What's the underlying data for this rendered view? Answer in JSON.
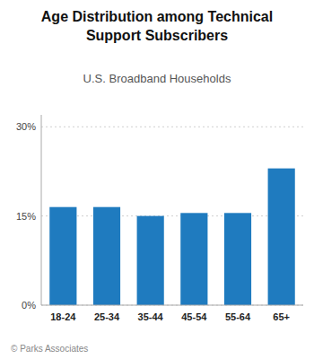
{
  "chart_data": {
    "type": "bar",
    "title": "Age Distribution among Technical\nSupport Subscribers",
    "subtitle": "U.S. Broadband Households",
    "footer": "© Parks Associates",
    "categories": [
      "18-24",
      "25-34",
      "35-44",
      "45-54",
      "55-64",
      "65+"
    ],
    "values": [
      16.5,
      16.5,
      15.0,
      15.5,
      15.5,
      23.0
    ],
    "color": "#1f7bbf",
    "ylim": [
      0,
      32
    ],
    "yticks": [
      {
        "value": 0,
        "label": "0%"
      },
      {
        "value": 15,
        "label": "15%"
      },
      {
        "value": 30,
        "label": "30%"
      }
    ],
    "grid": true
  }
}
